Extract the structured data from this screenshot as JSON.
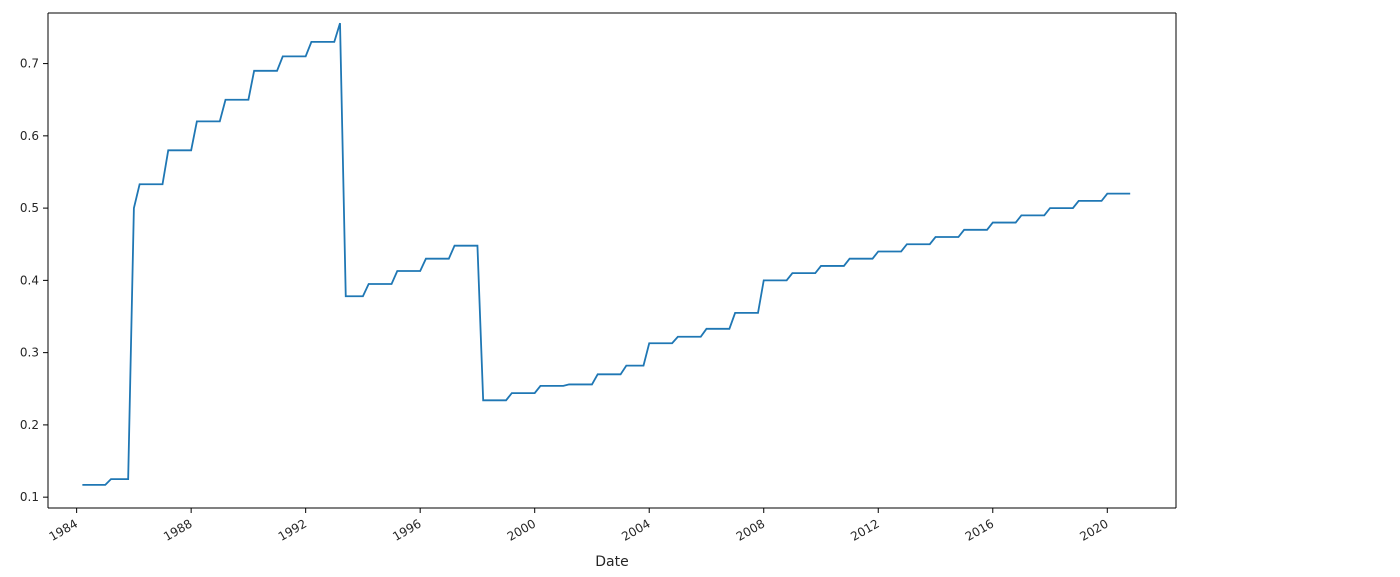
{
  "chart_data": {
    "type": "line",
    "title": "",
    "xlabel": "Date",
    "ylabel": "",
    "xlim": [
      1983.0,
      2022.4
    ],
    "ylim": [
      0.085,
      0.77
    ],
    "x_ticks": [
      1984,
      1988,
      1992,
      1996,
      2000,
      2004,
      2008,
      2012,
      2016,
      2020
    ],
    "x_tick_labels": [
      "1984",
      "1988",
      "1992",
      "1996",
      "2000",
      "2004",
      "2008",
      "2012",
      "2016",
      "2020"
    ],
    "y_ticks": [
      0.1,
      0.2,
      0.3,
      0.4,
      0.5,
      0.6,
      0.7
    ],
    "y_tick_labels": [
      "0.1",
      "0.2",
      "0.3",
      "0.4",
      "0.5",
      "0.6",
      "0.7"
    ],
    "grid": false,
    "legend": "none",
    "colors": {
      "line": "#1f77b4",
      "axes": "#000000",
      "text": "#262626"
    },
    "series": [
      {
        "x": [
          1984.2,
          1985.0,
          1985.2,
          1985.8,
          1986.0,
          1986.2,
          1987.0,
          1987.2,
          1988.0,
          1988.2,
          1989.0,
          1989.2,
          1990.0,
          1990.2,
          1991.0,
          1991.2,
          1992.0,
          1992.2,
          1993.0,
          1993.2,
          1993.4,
          1994.0,
          1994.2,
          1995.0,
          1995.2,
          1996.0,
          1996.2,
          1997.0,
          1997.2,
          1998.0,
          1998.2,
          1999.0,
          1999.2,
          2000.0,
          2000.2,
          2001.0,
          2001.2,
          2002.0,
          2002.2,
          2003.0,
          2003.2,
          2003.8,
          2004.0,
          2004.8,
          2005.0,
          2005.8,
          2006.0,
          2006.8,
          2007.0,
          2007.8,
          2008.0,
          2008.8,
          2009.0,
          2009.8,
          2010.0,
          2010.8,
          2011.0,
          2011.8,
          2012.0,
          2012.8,
          2013.0,
          2013.8,
          2014.0,
          2014.8,
          2015.0,
          2015.8,
          2016.0,
          2016.8,
          2017.0,
          2017.8,
          2018.0,
          2018.8,
          2019.0,
          2019.8,
          2020.0,
          2020.8
        ],
        "y": [
          0.117,
          0.117,
          0.125,
          0.125,
          0.5,
          0.533,
          0.533,
          0.58,
          0.58,
          0.62,
          0.62,
          0.65,
          0.65,
          0.69,
          0.69,
          0.71,
          0.71,
          0.73,
          0.73,
          0.756,
          0.378,
          0.378,
          0.395,
          0.395,
          0.413,
          0.413,
          0.43,
          0.43,
          0.448,
          0.448,
          0.234,
          0.234,
          0.244,
          0.244,
          0.254,
          0.254,
          0.256,
          0.256,
          0.27,
          0.27,
          0.282,
          0.282,
          0.313,
          0.313,
          0.322,
          0.322,
          0.333,
          0.333,
          0.355,
          0.355,
          0.4,
          0.4,
          0.41,
          0.41,
          0.42,
          0.42,
          0.43,
          0.43,
          0.44,
          0.44,
          0.45,
          0.45,
          0.46,
          0.46,
          0.47,
          0.47,
          0.48,
          0.48,
          0.49,
          0.49,
          0.5,
          0.5,
          0.51,
          0.51,
          0.52,
          0.52
        ]
      }
    ]
  }
}
